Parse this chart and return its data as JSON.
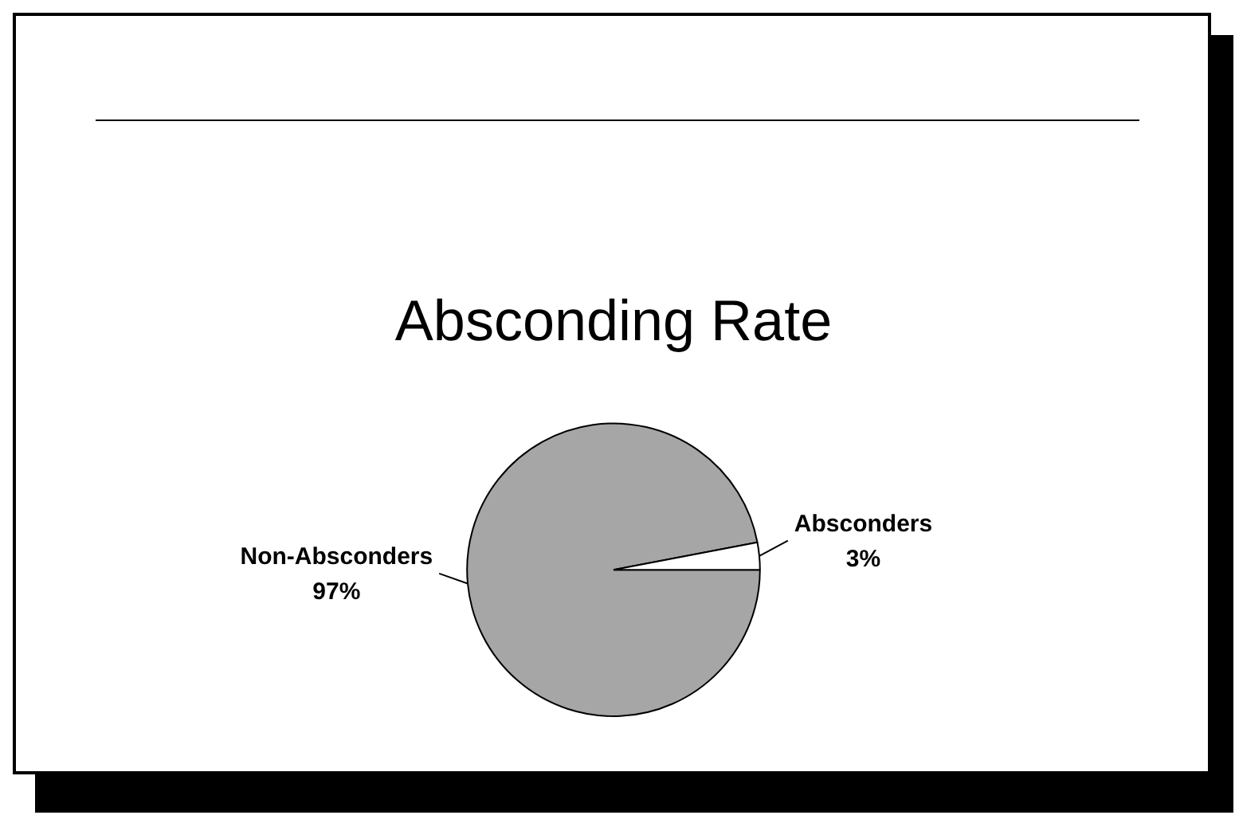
{
  "chart_data": {
    "type": "pie",
    "title": "Absconding Rate",
    "categories": [
      "Non-Absconders",
      "Absconders"
    ],
    "values": [
      97,
      3
    ],
    "value_labels": [
      "97%",
      "3%"
    ],
    "colors": [
      "#a6a6a6",
      "#ffffff"
    ],
    "legend": false
  }
}
